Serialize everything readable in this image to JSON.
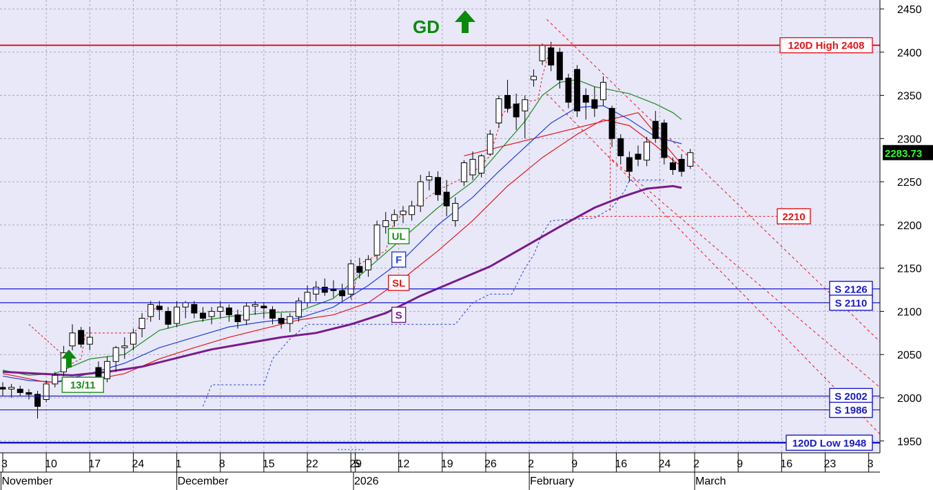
{
  "chart_data": {
    "type": "candlestick",
    "title": "",
    "signal": {
      "text": "GD",
      "direction": "up",
      "color": "#0a8a0a"
    },
    "last_price": 2283.73,
    "y_axis": {
      "min": 1925,
      "max": 2460,
      "ticks": [
        2450,
        2400,
        2350,
        2300,
        2250,
        2200,
        2150,
        2100,
        2050,
        2000,
        1950
      ],
      "side": "right"
    },
    "x_axis": {
      "ticks": [
        {
          "label": "3",
          "idx": 0
        },
        {
          "label": "10",
          "idx": 5
        },
        {
          "label": "17",
          "idx": 10
        },
        {
          "label": "24",
          "idx": 15
        },
        {
          "label": "1",
          "idx": 20
        },
        {
          "label": "8",
          "idx": 25
        },
        {
          "label": "15",
          "idx": 30
        },
        {
          "label": "22",
          "idx": 35
        },
        {
          "label": "29",
          "idx": 40
        },
        {
          "label": "5",
          "idx": 40.5
        },
        {
          "label": "12",
          "idx": 45.5
        },
        {
          "label": "19",
          "idx": 50.5
        },
        {
          "label": "26",
          "idx": 55.5
        },
        {
          "label": "2",
          "idx": 60.5
        },
        {
          "label": "9",
          "idx": 65.5
        },
        {
          "label": "16",
          "idx": 70.5
        },
        {
          "label": "24",
          "idx": 75.5
        },
        {
          "label": "2",
          "idx": 79.5
        },
        {
          "label": "9",
          "idx": 84.5
        },
        {
          "label": "16",
          "idx": 89.5
        },
        {
          "label": "23",
          "idx": 94.5
        },
        {
          "label": "3",
          "idx": 99.5
        }
      ],
      "months": [
        {
          "label": "November",
          "idx": -0.2
        },
        {
          "label": "December",
          "idx": 20
        },
        {
          "label": "2026",
          "idx": 40.3
        },
        {
          "label": "February",
          "idx": 60.5
        },
        {
          "label": "March",
          "idx": 79.5
        }
      ]
    },
    "levels": [
      {
        "label": "120D High 2408",
        "value": 2408,
        "color": "#e8141a",
        "kind": "high"
      },
      {
        "label": "S 2126",
        "value": 2126,
        "color": "#1919cc",
        "kind": "support"
      },
      {
        "label": "S 2110",
        "value": 2110,
        "color": "#1919cc",
        "kind": "support"
      },
      {
        "label": "S 2002",
        "value": 2002,
        "color": "#1919cc",
        "kind": "support"
      },
      {
        "label": "S 1986",
        "value": 1986,
        "color": "#1919cc",
        "kind": "support"
      },
      {
        "label": "120D Low 1948",
        "value": 1948,
        "color": "#1919cc",
        "kind": "low"
      },
      {
        "label": "2210",
        "value": 2210,
        "color": "#e8141a",
        "kind": "target"
      }
    ],
    "candles": [
      [
        2012,
        2018,
        2002,
        2010
      ],
      [
        2010,
        2016,
        2000,
        2012
      ],
      [
        2010,
        2014,
        2002,
        2006
      ],
      [
        2006,
        2010,
        1998,
        2004
      ],
      [
        2004,
        2008,
        1976,
        1990
      ],
      [
        1998,
        2020,
        1995,
        2016
      ],
      [
        2016,
        2030,
        2012,
        2026
      ],
      [
        2030,
        2060,
        2025,
        2052
      ],
      [
        2060,
        2085,
        2055,
        2075
      ],
      [
        2078,
        2082,
        2058,
        2062
      ],
      [
        2062,
        2082,
        2055,
        2070
      ],
      [
        2035,
        2042,
        2018,
        2022
      ],
      [
        2022,
        2048,
        2018,
        2042
      ],
      [
        2042,
        2060,
        2030,
        2058
      ],
      [
        2058,
        2070,
        2045,
        2060
      ],
      [
        2062,
        2080,
        2055,
        2075
      ],
      [
        2080,
        2098,
        2070,
        2092
      ],
      [
        2094,
        2112,
        2088,
        2108
      ],
      [
        2106,
        2112,
        2090,
        2102
      ],
      [
        2100,
        2105,
        2080,
        2085
      ],
      [
        2086,
        2112,
        2082,
        2105
      ],
      [
        2105,
        2112,
        2092,
        2110
      ],
      [
        2108,
        2112,
        2092,
        2098
      ],
      [
        2098,
        2105,
        2088,
        2092
      ],
      [
        2094,
        2105,
        2085,
        2100
      ],
      [
        2100,
        2112,
        2092,
        2105
      ],
      [
        2104,
        2108,
        2088,
        2096
      ],
      [
        2096,
        2102,
        2080,
        2088
      ],
      [
        2090,
        2110,
        2084,
        2106
      ],
      [
        2106,
        2112,
        2096,
        2108
      ],
      [
        2106,
        2110,
        2092,
        2104
      ],
      [
        2102,
        2106,
        2085,
        2092
      ],
      [
        2092,
        2098,
        2080,
        2086
      ],
      [
        2086,
        2098,
        2076,
        2094
      ],
      [
        2094,
        2116,
        2088,
        2112
      ],
      [
        2110,
        2130,
        2105,
        2122
      ],
      [
        2120,
        2135,
        2112,
        2128
      ],
      [
        2128,
        2138,
        2118,
        2122
      ],
      [
        2126,
        2136,
        2116,
        2124
      ],
      [
        2124,
        2132,
        2112,
        2118
      ],
      [
        2120,
        2160,
        2115,
        2155
      ],
      [
        2152,
        2162,
        2138,
        2145
      ],
      [
        2148,
        2165,
        2140,
        2160
      ],
      [
        2165,
        2205,
        2160,
        2200
      ],
      [
        2198,
        2215,
        2190,
        2205
      ],
      [
        2205,
        2218,
        2198,
        2212
      ],
      [
        2212,
        2222,
        2202,
        2216
      ],
      [
        2212,
        2228,
        2205,
        2222
      ],
      [
        2222,
        2258,
        2215,
        2250
      ],
      [
        2252,
        2262,
        2240,
        2256
      ],
      [
        2255,
        2262,
        2228,
        2235
      ],
      [
        2238,
        2252,
        2210,
        2222
      ],
      [
        2205,
        2232,
        2198,
        2225
      ],
      [
        2250,
        2275,
        2245,
        2272
      ],
      [
        2258,
        2285,
        2252,
        2276
      ],
      [
        2260,
        2282,
        2255,
        2280
      ],
      [
        2282,
        2310,
        2280,
        2305
      ],
      [
        2318,
        2350,
        2312,
        2346
      ],
      [
        2350,
        2368,
        2330,
        2335
      ],
      [
        2340,
        2352,
        2310,
        2325
      ],
      [
        2332,
        2350,
        2300,
        2345
      ],
      [
        2368,
        2380,
        2360,
        2372
      ],
      [
        2390,
        2410,
        2385,
        2408
      ],
      [
        2405,
        2412,
        2378,
        2385
      ],
      [
        2400,
        2405,
        2358,
        2368
      ],
      [
        2370,
        2375,
        2335,
        2342
      ],
      [
        2380,
        2385,
        2325,
        2332
      ],
      [
        2350,
        2358,
        2322,
        2342
      ],
      [
        2345,
        2360,
        2325,
        2335
      ],
      [
        2345,
        2372,
        2338,
        2365
      ],
      [
        2335,
        2338,
        2290,
        2300
      ],
      [
        2300,
        2305,
        2270,
        2280
      ],
      [
        2278,
        2285,
        2250,
        2262
      ],
      [
        2282,
        2292,
        2268,
        2276
      ],
      [
        2275,
        2302,
        2268,
        2296
      ],
      [
        2320,
        2332,
        2295,
        2300
      ],
      [
        2318,
        2322,
        2270,
        2278
      ],
      [
        2272,
        2278,
        2258,
        2264
      ],
      [
        2276,
        2282,
        2256,
        2262
      ],
      [
        2268,
        2288,
        2265,
        2283.73
      ]
    ],
    "series": [
      {
        "name": "UL",
        "color": "#1a8c1a",
        "values": [
          [
            0,
            2032
          ],
          [
            3,
            2026
          ],
          [
            6,
            2028
          ],
          [
            10,
            2045
          ],
          [
            14,
            2050
          ],
          [
            18,
            2078
          ],
          [
            22,
            2088
          ],
          [
            26,
            2094
          ],
          [
            30,
            2098
          ],
          [
            34,
            2100
          ],
          [
            38,
            2115
          ],
          [
            42,
            2150
          ],
          [
            46,
            2185
          ],
          [
            50,
            2220
          ],
          [
            54,
            2250
          ],
          [
            57,
            2285
          ],
          [
            60,
            2320
          ],
          [
            62,
            2350
          ],
          [
            64,
            2365
          ],
          [
            66,
            2368
          ],
          [
            68,
            2360
          ],
          [
            72,
            2352
          ],
          [
            75,
            2340
          ],
          [
            77,
            2330
          ],
          [
            78,
            2322
          ]
        ]
      },
      {
        "name": "F",
        "color": "#1f3fe0",
        "values": [
          [
            0,
            2025
          ],
          [
            3,
            2020
          ],
          [
            6,
            2018
          ],
          [
            10,
            2028
          ],
          [
            14,
            2040
          ],
          [
            18,
            2058
          ],
          [
            22,
            2070
          ],
          [
            26,
            2082
          ],
          [
            30,
            2088
          ],
          [
            34,
            2092
          ],
          [
            38,
            2105
          ],
          [
            42,
            2130
          ],
          [
            46,
            2160
          ],
          [
            50,
            2200
          ],
          [
            54,
            2232
          ],
          [
            57,
            2262
          ],
          [
            60,
            2290
          ],
          [
            63,
            2318
          ],
          [
            66,
            2336
          ],
          [
            69,
            2338
          ],
          [
            72,
            2322
          ],
          [
            75,
            2302
          ],
          [
            78,
            2294
          ]
        ]
      },
      {
        "name": "SL",
        "color": "#e8141a",
        "values": [
          [
            0,
            2028
          ],
          [
            5,
            2018
          ],
          [
            10,
            2020
          ],
          [
            14,
            2028
          ],
          [
            18,
            2045
          ],
          [
            22,
            2058
          ],
          [
            26,
            2070
          ],
          [
            30,
            2080
          ],
          [
            34,
            2090
          ],
          [
            38,
            2096
          ],
          [
            42,
            2110
          ],
          [
            46,
            2138
          ],
          [
            50,
            2170
          ],
          [
            54,
            2205
          ],
          [
            58,
            2245
          ],
          [
            62,
            2278
          ],
          [
            66,
            2305
          ],
          [
            69,
            2322
          ],
          [
            72,
            2315
          ],
          [
            75,
            2292
          ],
          [
            77,
            2275
          ],
          [
            78,
            2268
          ]
        ]
      },
      {
        "name": "S",
        "color": "#7a1a8c",
        "values": [
          [
            0,
            2030
          ],
          [
            4,
            2028
          ],
          [
            8,
            2026
          ],
          [
            12,
            2030
          ],
          [
            16,
            2036
          ],
          [
            20,
            2046
          ],
          [
            24,
            2056
          ],
          [
            28,
            2063
          ],
          [
            32,
            2070
          ],
          [
            36,
            2075
          ],
          [
            40,
            2085
          ],
          [
            44,
            2098
          ],
          [
            48,
            2118
          ],
          [
            52,
            2135
          ],
          [
            56,
            2152
          ],
          [
            60,
            2175
          ],
          [
            64,
            2198
          ],
          [
            68,
            2220
          ],
          [
            71,
            2232
          ],
          [
            74,
            2242
          ],
          [
            77,
            2245
          ],
          [
            78,
            2243
          ]
        ]
      }
    ],
    "labels": [
      {
        "text": "UL",
        "color": "#1a8c1a",
        "idx": 45.5,
        "value": 2187
      },
      {
        "text": "F",
        "color": "#1f3fe0",
        "idx": 45.5,
        "value": 2160
      },
      {
        "text": "SL",
        "color": "#e8141a",
        "idx": 45.5,
        "value": 2133
      },
      {
        "text": "S",
        "color": "#7a1a8c",
        "idx": 45.5,
        "value": 2096
      },
      {
        "text": "13/11",
        "color": "#1a8c1a",
        "idx": 9.2,
        "value": 2015
      }
    ]
  }
}
